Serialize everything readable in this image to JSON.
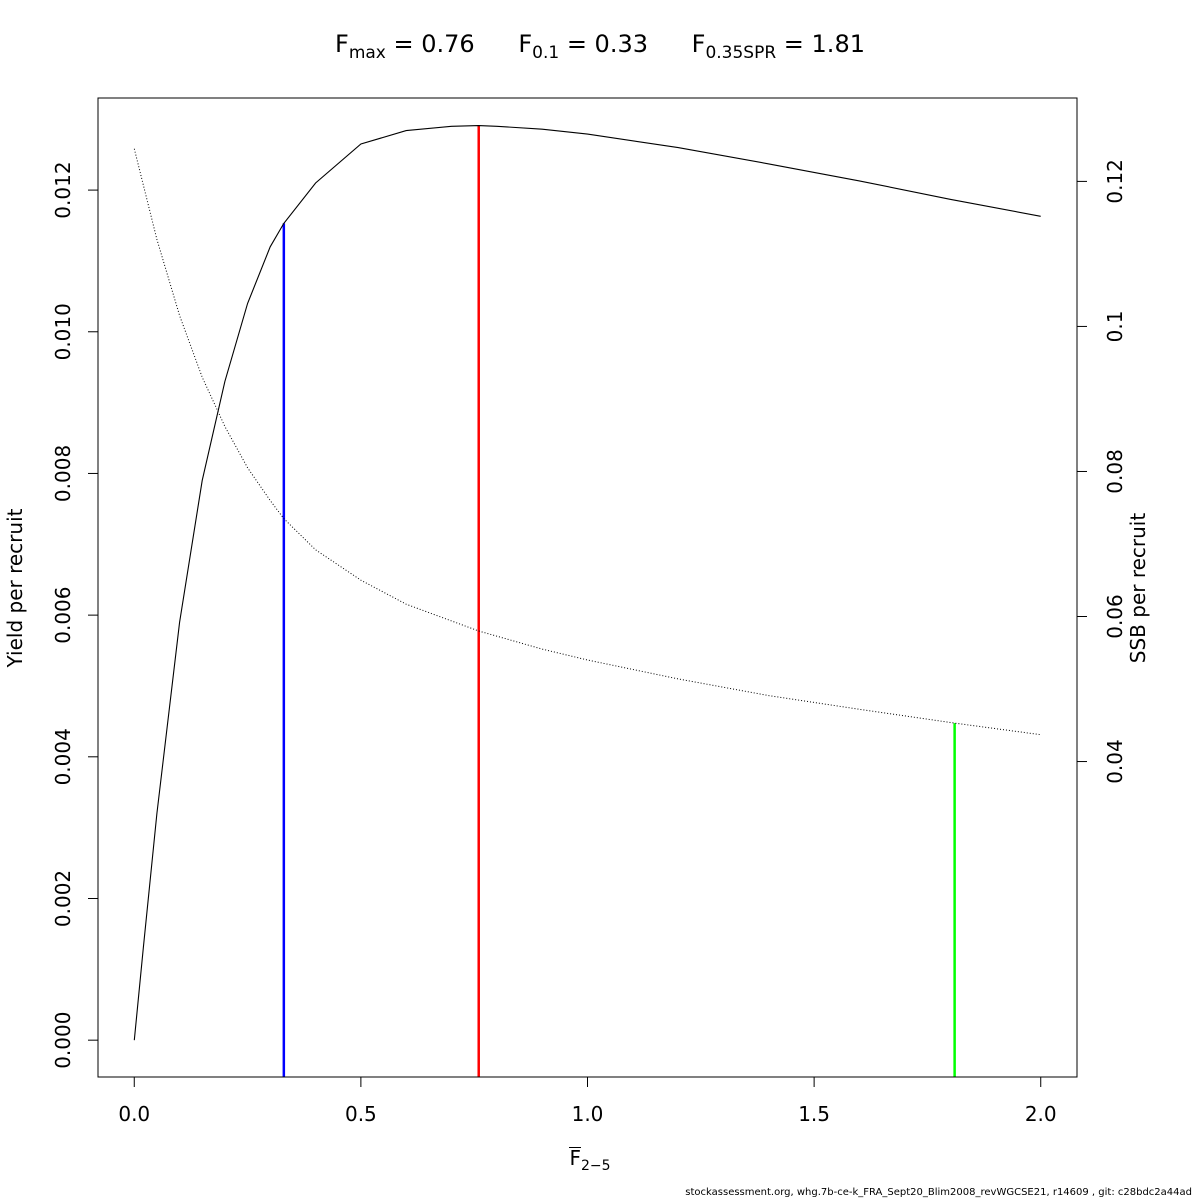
{
  "title": {
    "fmax_label": "F",
    "fmax_sub": "max",
    "fmax_value": " = 0.76",
    "f01_label": "F",
    "f01_sub": "0.1",
    "f01_value": " = 0.33",
    "fspr_label": "F",
    "fspr_sub": "0.35SPR",
    "fspr_value": " = 1.81"
  },
  "footer": "stockassessment.org, whg.7b-ce-k_FRA_Sept20_Blim2008_revWGCSE21, r14609 , git: c28bdc2a44ad",
  "chart_data": {
    "type": "line",
    "xlabel": {
      "base": "F",
      "sub": "2−5"
    },
    "ylabel": "Yield per recruit",
    "y2label": "SSB per recruit",
    "xlim": [
      -0.08,
      2.08
    ],
    "ylim": [
      -0.00052,
      0.0133
    ],
    "y2lim": [
      -0.0035,
      0.1315
    ],
    "x_ticks": [
      0.0,
      0.5,
      1.0,
      1.5,
      2.0
    ],
    "x_tick_labels": [
      "0.0",
      "0.5",
      "1.0",
      "1.5",
      "2.0"
    ],
    "y_ticks": [
      0.0,
      0.002,
      0.004,
      0.006,
      0.008,
      0.01,
      0.012
    ],
    "y_tick_labels": [
      "0.000",
      "0.002",
      "0.004",
      "0.006",
      "0.008",
      "0.010",
      "0.012"
    ],
    "y2_ticks": [
      0.04,
      0.06,
      0.08,
      0.1,
      0.12
    ],
    "y2_tick_labels": [
      "0.04",
      "0.06",
      "0.08",
      "0.1",
      "0.12"
    ],
    "series": [
      {
        "axis": "left",
        "style": "solid",
        "color": "#000000",
        "x": [
          0.0,
          0.02,
          0.05,
          0.1,
          0.15,
          0.2,
          0.25,
          0.3,
          0.33,
          0.4,
          0.5,
          0.6,
          0.7,
          0.76,
          0.8,
          0.9,
          1.0,
          1.2,
          1.4,
          1.6,
          1.8,
          2.0
        ],
        "y": [
          0.0,
          0.0013,
          0.0032,
          0.0059,
          0.0079,
          0.0093,
          0.0104,
          0.0112,
          0.01153,
          0.0121,
          0.01265,
          0.01284,
          0.0129,
          0.01291,
          0.0129,
          0.01286,
          0.01279,
          0.0126,
          0.01237,
          0.01213,
          0.01187,
          0.01163
        ]
      },
      {
        "axis": "right",
        "style": "dotted",
        "color": "#000000",
        "x": [
          0.0,
          0.05,
          0.1,
          0.15,
          0.2,
          0.25,
          0.3,
          0.33,
          0.4,
          0.5,
          0.6,
          0.76,
          0.9,
          1.0,
          1.2,
          1.4,
          1.6,
          1.81,
          2.0
        ],
        "y": [
          0.1245,
          0.112,
          0.1015,
          0.093,
          0.0862,
          0.0805,
          0.076,
          0.0735,
          0.0692,
          0.065,
          0.0617,
          0.058,
          0.0555,
          0.054,
          0.0514,
          0.0491,
          0.0472,
          0.0453,
          0.0437
        ]
      }
    ],
    "reference_lines": [
      {
        "name": "Fmax",
        "x": 0.76,
        "color": "#ff0000",
        "axis": "left",
        "top": 0.01291
      },
      {
        "name": "F0.1",
        "x": 0.33,
        "color": "#0000ff",
        "axis": "left",
        "top": 0.01153
      },
      {
        "name": "F0.35SPR",
        "x": 1.81,
        "color": "#00ff00",
        "axis": "right",
        "top": 0.0453
      }
    ],
    "grid": false,
    "legend": "none"
  }
}
